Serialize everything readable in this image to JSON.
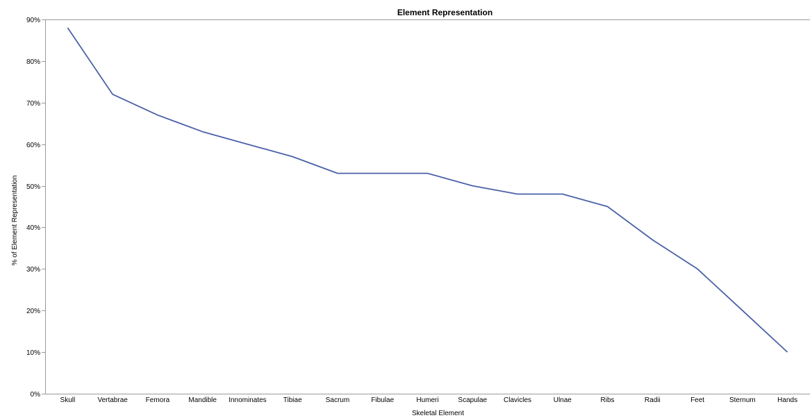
{
  "chart_data": {
    "type": "line",
    "title": "Element Representation",
    "xlabel": "Skeletal Element",
    "ylabel": "% of Element Representation",
    "categories": [
      "Skull",
      "Vertabrae",
      "Femora",
      "Mandible",
      "Innominates",
      "Tibiae",
      "Sacrum",
      "Fibulae",
      "Humeri",
      "Scapulae",
      "Clavicles",
      "Ulnae",
      "Ribs",
      "Radii",
      "Feet",
      "Sternum",
      "Hands"
    ],
    "series": [
      {
        "values": [
          88,
          72,
          67,
          63,
          60,
          57,
          53,
          53,
          53,
          50,
          48,
          48,
          45,
          37,
          30,
          20,
          10
        ],
        "color": "#4a61a8"
      }
    ],
    "ylim": [
      0,
      90
    ],
    "yticks": [
      0,
      10,
      20,
      30,
      40,
      50,
      60,
      70,
      80,
      90
    ],
    "ytick_labels": [
      "0%",
      "10%",
      "20%",
      "30%",
      "40%",
      "50%",
      "60%",
      "70%",
      "80%",
      "90%"
    ],
    "grid": false,
    "legend": "none"
  }
}
